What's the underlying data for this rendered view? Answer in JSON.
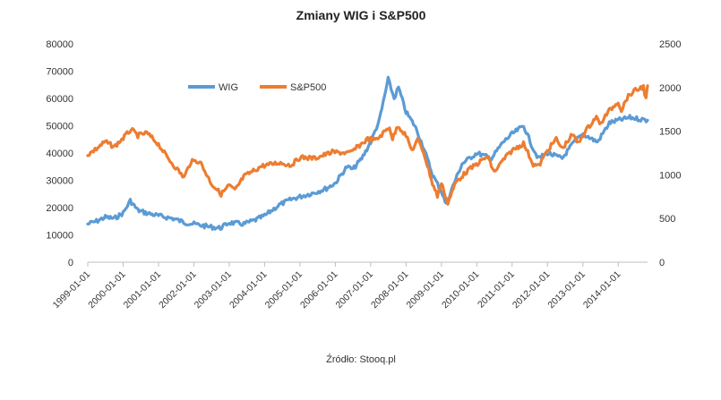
{
  "chart_data": {
    "type": "line",
    "title": "Zmiany WIG i S&P500",
    "source": "Źródło: Stooq.pl",
    "xlabel": "",
    "ylabel": "",
    "x_range": [
      "1999-01-01",
      "2014-10-31"
    ],
    "x_tick_labels": [
      "1999-01-01",
      "2000-01-01",
      "2001-01-01",
      "2002-01-01",
      "2003-01-01",
      "2004-01-01",
      "2005-01-01",
      "2006-01-01",
      "2007-01-01",
      "2008-01-01",
      "2009-01-01",
      "2010-01-01",
      "2011-01-01",
      "2012-01-01",
      "2013-01-01",
      "2014-01-01"
    ],
    "y_left": {
      "min": 0,
      "max": 80000,
      "ticks": [
        "0",
        "10000",
        "20000",
        "30000",
        "40000",
        "50000",
        "60000",
        "70000",
        "80000"
      ]
    },
    "y_right": {
      "min": 0,
      "max": 2500,
      "ticks": [
        "0",
        "500",
        "1000",
        "1500",
        "2000",
        "2500"
      ]
    },
    "grid": false,
    "legend_position": "top-left inside plot",
    "series": [
      {
        "name": "WIG",
        "axis": "left",
        "color": "#5b9bd5",
        "points": [
          [
            "1999-01-01",
            14000
          ],
          [
            "1999-04-01",
            15000
          ],
          [
            "1999-07-01",
            16500
          ],
          [
            "1999-10-01",
            16000
          ],
          [
            "2000-01-01",
            18000
          ],
          [
            "2000-03-15",
            22500
          ],
          [
            "2000-06-01",
            19000
          ],
          [
            "2000-09-01",
            18000
          ],
          [
            "2001-01-01",
            17000
          ],
          [
            "2001-06-01",
            16000
          ],
          [
            "2001-10-01",
            14500
          ],
          [
            "2002-01-01",
            14000
          ],
          [
            "2002-06-01",
            13000
          ],
          [
            "2002-10-01",
            12500
          ],
          [
            "2003-01-01",
            14500
          ],
          [
            "2003-06-01",
            14000
          ],
          [
            "2003-10-01",
            15500
          ],
          [
            "2004-01-01",
            17000
          ],
          [
            "2004-06-01",
            21000
          ],
          [
            "2004-10-01",
            23000
          ],
          [
            "2005-01-01",
            24000
          ],
          [
            "2005-06-01",
            25500
          ],
          [
            "2005-10-01",
            27000
          ],
          [
            "2006-01-01",
            29000
          ],
          [
            "2006-05-01",
            35000
          ],
          [
            "2006-07-01",
            34000
          ],
          [
            "2006-10-01",
            38000
          ],
          [
            "2007-01-01",
            44000
          ],
          [
            "2007-04-01",
            52000
          ],
          [
            "2007-07-01",
            67000
          ],
          [
            "2007-09-01",
            60000
          ],
          [
            "2007-10-15",
            64000
          ],
          [
            "2008-01-01",
            55000
          ],
          [
            "2008-04-01",
            50000
          ],
          [
            "2008-07-01",
            42000
          ],
          [
            "2008-10-01",
            32000
          ],
          [
            "2009-01-01",
            26000
          ],
          [
            "2009-02-20",
            21000
          ],
          [
            "2009-05-01",
            28000
          ],
          [
            "2009-08-01",
            36000
          ],
          [
            "2010-01-01",
            40000
          ],
          [
            "2010-06-01",
            38000
          ],
          [
            "2010-10-01",
            44000
          ],
          [
            "2011-01-01",
            47000
          ],
          [
            "2011-05-01",
            50000
          ],
          [
            "2011-08-01",
            42000
          ],
          [
            "2011-10-01",
            38000
          ],
          [
            "2012-01-01",
            40000
          ],
          [
            "2012-06-01",
            38000
          ],
          [
            "2012-10-01",
            44000
          ],
          [
            "2013-01-01",
            47000
          ],
          [
            "2013-06-01",
            44000
          ],
          [
            "2013-10-01",
            51000
          ],
          [
            "2014-01-01",
            52000
          ],
          [
            "2014-05-01",
            53000
          ],
          [
            "2014-10-31",
            52000
          ]
        ]
      },
      {
        "name": "S&P500",
        "axis": "right",
        "color": "#ed7d31",
        "points": [
          [
            "1999-01-01",
            1230
          ],
          [
            "1999-04-01",
            1300
          ],
          [
            "1999-07-01",
            1380
          ],
          [
            "1999-10-01",
            1320
          ],
          [
            "2000-01-01",
            1420
          ],
          [
            "2000-03-24",
            1520
          ],
          [
            "2000-06-01",
            1450
          ],
          [
            "2000-09-01",
            1480
          ],
          [
            "2001-01-01",
            1350
          ],
          [
            "2001-04-01",
            1200
          ],
          [
            "2001-09-21",
            970
          ],
          [
            "2001-12-01",
            1150
          ],
          [
            "2002-03-01",
            1160
          ],
          [
            "2002-07-01",
            900
          ],
          [
            "2002-10-09",
            780
          ],
          [
            "2003-01-01",
            880
          ],
          [
            "2003-03-01",
            820
          ],
          [
            "2003-06-01",
            980
          ],
          [
            "2003-12-01",
            1100
          ],
          [
            "2004-06-01",
            1140
          ],
          [
            "2004-10-01",
            1110
          ],
          [
            "2005-01-01",
            1200
          ],
          [
            "2005-06-01",
            1190
          ],
          [
            "2005-12-01",
            1260
          ],
          [
            "2006-06-01",
            1250
          ],
          [
            "2006-12-01",
            1410
          ],
          [
            "2007-03-01",
            1400
          ],
          [
            "2007-07-15",
            1550
          ],
          [
            "2007-08-15",
            1410
          ],
          [
            "2007-10-09",
            1565
          ],
          [
            "2008-01-01",
            1450
          ],
          [
            "2008-03-01",
            1280
          ],
          [
            "2008-05-01",
            1400
          ],
          [
            "2008-07-01",
            1260
          ],
          [
            "2008-10-01",
            900
          ],
          [
            "2008-11-20",
            760
          ],
          [
            "2009-01-01",
            900
          ],
          [
            "2009-03-09",
            680
          ],
          [
            "2009-06-01",
            920
          ],
          [
            "2009-10-01",
            1050
          ],
          [
            "2010-04-20",
            1210
          ],
          [
            "2010-07-01",
            1030
          ],
          [
            "2010-10-01",
            1170
          ],
          [
            "2011-01-01",
            1280
          ],
          [
            "2011-04-29",
            1360
          ],
          [
            "2011-08-08",
            1120
          ],
          [
            "2011-10-03",
            1100
          ],
          [
            "2012-01-01",
            1280
          ],
          [
            "2012-04-01",
            1410
          ],
          [
            "2012-06-01",
            1300
          ],
          [
            "2012-09-14",
            1460
          ],
          [
            "2012-11-15",
            1360
          ],
          [
            "2013-01-01",
            1460
          ],
          [
            "2013-05-21",
            1670
          ],
          [
            "2013-06-24",
            1570
          ],
          [
            "2013-09-18",
            1720
          ],
          [
            "2014-01-01",
            1840
          ],
          [
            "2014-02-03",
            1740
          ],
          [
            "2014-04-01",
            1880
          ],
          [
            "2014-06-01",
            1950
          ],
          [
            "2014-09-18",
            2010
          ],
          [
            "2014-10-15",
            1860
          ],
          [
            "2014-10-31",
            2020
          ]
        ]
      }
    ]
  }
}
